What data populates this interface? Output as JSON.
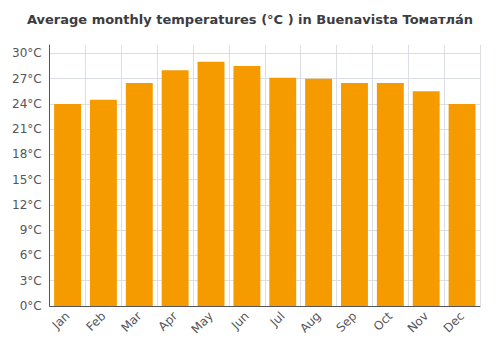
{
  "chart_data": {
    "type": "bar",
    "title": "Average monthly temperatures (°C ) in Buenavista Toматлán",
    "categories": [
      "Jan",
      "Feb",
      "Mar",
      "Apr",
      "May",
      "Jun",
      "Jul",
      "Aug",
      "Sep",
      "Oct",
      "Nov",
      "Dec"
    ],
    "values": [
      24.0,
      24.5,
      26.5,
      28.0,
      29.0,
      28.5,
      27.1,
      27.0,
      26.5,
      26.5,
      25.5,
      24.0
    ],
    "color": "#F59B00",
    "ylim": [
      0,
      31
    ],
    "yticks": [
      {
        "value": 0,
        "label": "0°C"
      },
      {
        "value": 3,
        "label": "3°C"
      },
      {
        "value": 6,
        "label": "6°C"
      },
      {
        "value": 9,
        "label": "9°C"
      },
      {
        "value": 12,
        "label": "12°C"
      },
      {
        "value": 15,
        "label": "15°C"
      },
      {
        "value": 18,
        "label": "18°C"
      },
      {
        "value": 21,
        "label": "21°C"
      },
      {
        "value": 24,
        "label": "24°C"
      },
      {
        "value": 27,
        "label": "27°C"
      },
      {
        "value": 30,
        "label": "30°C"
      }
    ],
    "grid": true
  }
}
